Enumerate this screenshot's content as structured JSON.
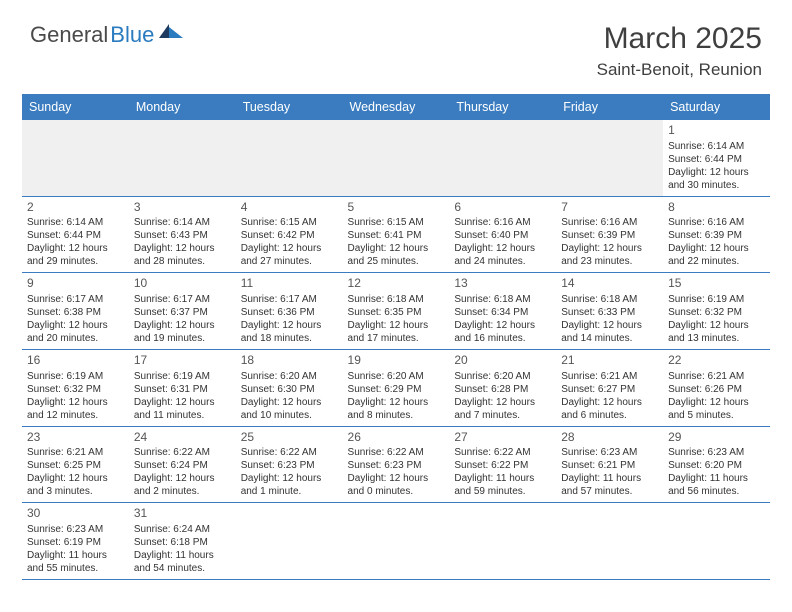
{
  "brand": {
    "part1": "General",
    "part2": "Blue"
  },
  "title": "March 2025",
  "location": "Saint-Benoit, Reunion",
  "colors": {
    "header_bg": "#3a7cbf",
    "header_text": "#ffffff",
    "body_text": "#333333",
    "rule": "#3a7cbf",
    "logo_dark": "#4a4a4a",
    "logo_blue": "#2a7bbf",
    "offmonth_bg": "#f0f0f0"
  },
  "weekdays": [
    "Sunday",
    "Monday",
    "Tuesday",
    "Wednesday",
    "Thursday",
    "Friday",
    "Saturday"
  ],
  "weeks": [
    [
      null,
      null,
      null,
      null,
      null,
      null,
      {
        "d": "1",
        "sr": "6:14 AM",
        "ss": "6:44 PM",
        "dl": "12 hours and 30 minutes."
      }
    ],
    [
      {
        "d": "2",
        "sr": "6:14 AM",
        "ss": "6:44 PM",
        "dl": "12 hours and 29 minutes."
      },
      {
        "d": "3",
        "sr": "6:14 AM",
        "ss": "6:43 PM",
        "dl": "12 hours and 28 minutes."
      },
      {
        "d": "4",
        "sr": "6:15 AM",
        "ss": "6:42 PM",
        "dl": "12 hours and 27 minutes."
      },
      {
        "d": "5",
        "sr": "6:15 AM",
        "ss": "6:41 PM",
        "dl": "12 hours and 25 minutes."
      },
      {
        "d": "6",
        "sr": "6:16 AM",
        "ss": "6:40 PM",
        "dl": "12 hours and 24 minutes."
      },
      {
        "d": "7",
        "sr": "6:16 AM",
        "ss": "6:39 PM",
        "dl": "12 hours and 23 minutes."
      },
      {
        "d": "8",
        "sr": "6:16 AM",
        "ss": "6:39 PM",
        "dl": "12 hours and 22 minutes."
      }
    ],
    [
      {
        "d": "9",
        "sr": "6:17 AM",
        "ss": "6:38 PM",
        "dl": "12 hours and 20 minutes."
      },
      {
        "d": "10",
        "sr": "6:17 AM",
        "ss": "6:37 PM",
        "dl": "12 hours and 19 minutes."
      },
      {
        "d": "11",
        "sr": "6:17 AM",
        "ss": "6:36 PM",
        "dl": "12 hours and 18 minutes."
      },
      {
        "d": "12",
        "sr": "6:18 AM",
        "ss": "6:35 PM",
        "dl": "12 hours and 17 minutes."
      },
      {
        "d": "13",
        "sr": "6:18 AM",
        "ss": "6:34 PM",
        "dl": "12 hours and 16 minutes."
      },
      {
        "d": "14",
        "sr": "6:18 AM",
        "ss": "6:33 PM",
        "dl": "12 hours and 14 minutes."
      },
      {
        "d": "15",
        "sr": "6:19 AM",
        "ss": "6:32 PM",
        "dl": "12 hours and 13 minutes."
      }
    ],
    [
      {
        "d": "16",
        "sr": "6:19 AM",
        "ss": "6:32 PM",
        "dl": "12 hours and 12 minutes."
      },
      {
        "d": "17",
        "sr": "6:19 AM",
        "ss": "6:31 PM",
        "dl": "12 hours and 11 minutes."
      },
      {
        "d": "18",
        "sr": "6:20 AM",
        "ss": "6:30 PM",
        "dl": "12 hours and 10 minutes."
      },
      {
        "d": "19",
        "sr": "6:20 AM",
        "ss": "6:29 PM",
        "dl": "12 hours and 8 minutes."
      },
      {
        "d": "20",
        "sr": "6:20 AM",
        "ss": "6:28 PM",
        "dl": "12 hours and 7 minutes."
      },
      {
        "d": "21",
        "sr": "6:21 AM",
        "ss": "6:27 PM",
        "dl": "12 hours and 6 minutes."
      },
      {
        "d": "22",
        "sr": "6:21 AM",
        "ss": "6:26 PM",
        "dl": "12 hours and 5 minutes."
      }
    ],
    [
      {
        "d": "23",
        "sr": "6:21 AM",
        "ss": "6:25 PM",
        "dl": "12 hours and 3 minutes."
      },
      {
        "d": "24",
        "sr": "6:22 AM",
        "ss": "6:24 PM",
        "dl": "12 hours and 2 minutes."
      },
      {
        "d": "25",
        "sr": "6:22 AM",
        "ss": "6:23 PM",
        "dl": "12 hours and 1 minute."
      },
      {
        "d": "26",
        "sr": "6:22 AM",
        "ss": "6:23 PM",
        "dl": "12 hours and 0 minutes."
      },
      {
        "d": "27",
        "sr": "6:22 AM",
        "ss": "6:22 PM",
        "dl": "11 hours and 59 minutes."
      },
      {
        "d": "28",
        "sr": "6:23 AM",
        "ss": "6:21 PM",
        "dl": "11 hours and 57 minutes."
      },
      {
        "d": "29",
        "sr": "6:23 AM",
        "ss": "6:20 PM",
        "dl": "11 hours and 56 minutes."
      }
    ],
    [
      {
        "d": "30",
        "sr": "6:23 AM",
        "ss": "6:19 PM",
        "dl": "11 hours and 55 minutes."
      },
      {
        "d": "31",
        "sr": "6:24 AM",
        "ss": "6:18 PM",
        "dl": "11 hours and 54 minutes."
      },
      null,
      null,
      null,
      null,
      null
    ]
  ],
  "labels": {
    "sunrise": "Sunrise:",
    "sunset": "Sunset:",
    "daylight": "Daylight:"
  }
}
